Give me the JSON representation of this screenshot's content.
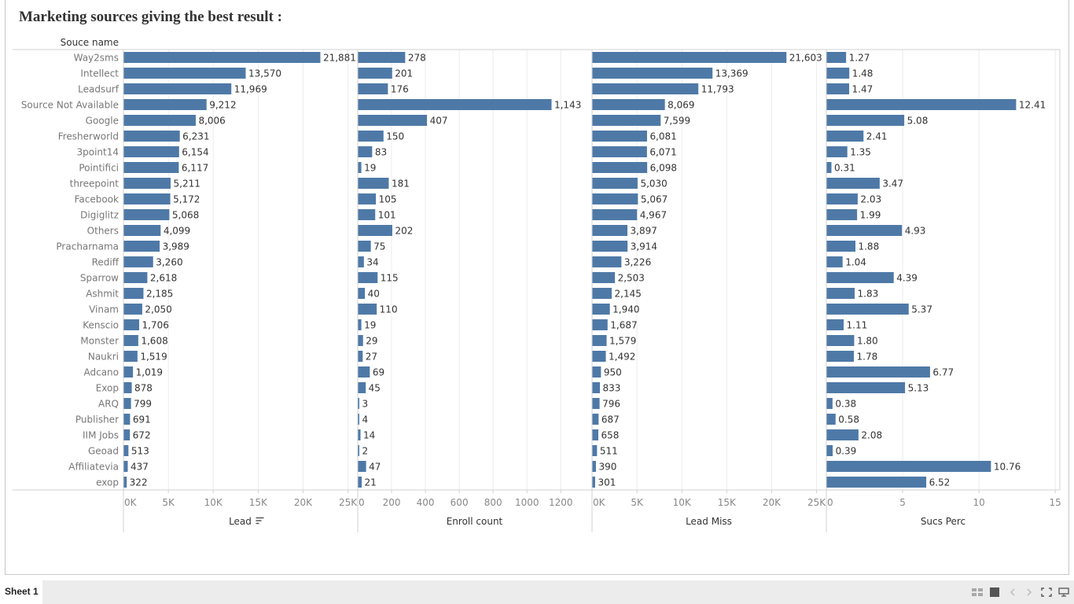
{
  "title": "Marketing sources giving the best result :",
  "row_header": "Souce name",
  "tabs": {
    "sheet": "Sheet 1"
  },
  "colors": {
    "bar": "#4e79a7",
    "axis": "#d0d0d0",
    "grid": "#ececec",
    "label": "#777777",
    "value": "#333333"
  },
  "chart_data": {
    "type": "bar",
    "orientation": "horizontal",
    "categories": [
      "Way2sms",
      "Intellect",
      "Leadsurf",
      "Source Not Available",
      "Google",
      "Fresherworld",
      "3point14",
      "Pointifici",
      "threepoint",
      "Facebook",
      "Digiglitz",
      "Others",
      "Pracharnama",
      "Rediff",
      "Sparrow",
      "Ashmit",
      "Vinam",
      "Kenscio",
      "Monster",
      "Naukri",
      "Adcano",
      "Exop",
      "ARQ",
      "Publisher",
      "IIM Jobs",
      "Geoad",
      "Affiliatevia",
      "exop"
    ],
    "series": [
      {
        "name": "Lead",
        "values": [
          21881,
          13570,
          11969,
          9212,
          8006,
          6231,
          6154,
          6117,
          5211,
          5172,
          5068,
          4099,
          3989,
          3260,
          2618,
          2185,
          2050,
          1706,
          1608,
          1519,
          1019,
          878,
          799,
          691,
          672,
          513,
          437,
          322
        ],
        "labels": [
          "21,881",
          "13,570",
          "11,969",
          "9,212",
          "8,006",
          "6,231",
          "6,154",
          "6,117",
          "5,211",
          "5,172",
          "5,068",
          "4,099",
          "3,989",
          "3,260",
          "2,618",
          "2,185",
          "2,050",
          "1,706",
          "1,608",
          "1,519",
          "1,019",
          "878",
          "799",
          "691",
          "672",
          "513",
          "437",
          "322"
        ],
        "xlim": [
          0,
          26000
        ],
        "ticks": [
          0,
          5000,
          10000,
          15000,
          20000,
          25000
        ],
        "tick_labels": [
          "0K",
          "5K",
          "10K",
          "15K",
          "20K",
          "25K"
        ],
        "sorted": true
      },
      {
        "name": "Enroll count",
        "values": [
          278,
          201,
          176,
          1143,
          407,
          150,
          83,
          19,
          181,
          105,
          101,
          202,
          75,
          34,
          115,
          40,
          110,
          19,
          29,
          27,
          69,
          45,
          3,
          4,
          14,
          2,
          47,
          21
        ],
        "labels": [
          "278",
          "201",
          "176",
          "1,143",
          "407",
          "150",
          "83",
          "19",
          "181",
          "105",
          "101",
          "202",
          "75",
          "34",
          "115",
          "40",
          "110",
          "19",
          "29",
          "27",
          "69",
          "45",
          "3",
          "4",
          "14",
          "2",
          "47",
          "21"
        ],
        "xlim": [
          0,
          1380
        ],
        "ticks": [
          0,
          200,
          400,
          600,
          800,
          1000,
          1200
        ],
        "tick_labels": [
          "0",
          "200",
          "400",
          "600",
          "800",
          "1000",
          "1200"
        ]
      },
      {
        "name": "Lead Miss",
        "values": [
          21603,
          13369,
          11793,
          8069,
          7599,
          6081,
          6071,
          6098,
          5030,
          5067,
          4967,
          3897,
          3914,
          3226,
          2503,
          2145,
          1940,
          1687,
          1579,
          1492,
          950,
          833,
          796,
          687,
          658,
          511,
          390,
          301
        ],
        "labels": [
          "21,603",
          "13,369",
          "11,793",
          "8,069",
          "7,599",
          "6,081",
          "6,071",
          "6,098",
          "5,030",
          "5,067",
          "4,967",
          "3,897",
          "3,914",
          "3,226",
          "2,503",
          "2,145",
          "1,940",
          "1,687",
          "1,579",
          "1,492",
          "950",
          "833",
          "796",
          "687",
          "658",
          "511",
          "390",
          "301"
        ],
        "xlim": [
          0,
          26000
        ],
        "ticks": [
          0,
          5000,
          10000,
          15000,
          20000,
          25000
        ],
        "tick_labels": [
          "0K",
          "5K",
          "10K",
          "15K",
          "20K",
          "25K"
        ]
      },
      {
        "name": "Sucs Perc",
        "values": [
          1.27,
          1.48,
          1.47,
          12.41,
          5.08,
          2.41,
          1.35,
          0.31,
          3.47,
          2.03,
          1.99,
          4.93,
          1.88,
          1.04,
          4.39,
          1.83,
          5.37,
          1.11,
          1.8,
          1.78,
          6.77,
          5.13,
          0.38,
          0.58,
          2.08,
          0.39,
          10.76,
          6.52
        ],
        "labels": [
          "1.27",
          "1.48",
          "1.47",
          "12.41",
          "5.08",
          "2.41",
          "1.35",
          "0.31",
          "3.47",
          "2.03",
          "1.99",
          "4.93",
          "1.88",
          "1.04",
          "4.39",
          "1.83",
          "5.37",
          "1.11",
          "1.80",
          "1.78",
          "6.77",
          "5.13",
          "0.38",
          "0.58",
          "2.08",
          "0.39",
          "10.76",
          "6.52"
        ],
        "xlim": [
          0,
          15.3
        ],
        "ticks": [
          0,
          5,
          10,
          15
        ],
        "tick_labels": [
          "0",
          "5",
          "10",
          "15"
        ]
      }
    ],
    "grid": true,
    "legend": "none"
  }
}
